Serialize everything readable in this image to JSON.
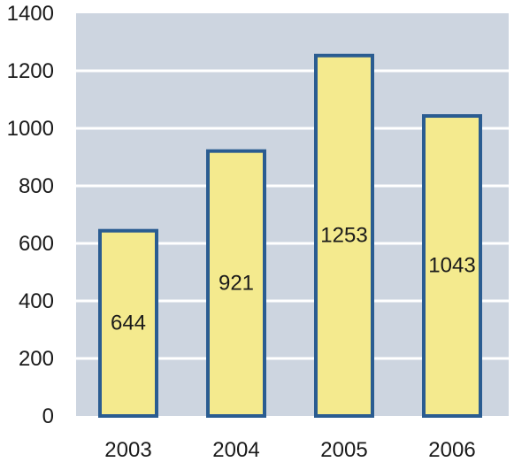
{
  "chart_data": {
    "type": "bar",
    "categories": [
      "2003",
      "2004",
      "2005",
      "2006"
    ],
    "values": [
      644,
      921,
      1253,
      1043
    ],
    "data_labels": [
      "644",
      "921",
      "1253",
      "1043"
    ],
    "ylim": [
      0,
      1400
    ],
    "yticks": [
      0,
      200,
      400,
      600,
      800,
      1000,
      1200,
      1400
    ],
    "ytick_labels": [
      "0",
      "200",
      "400",
      "600",
      "800",
      "1000",
      "1200",
      "1400"
    ],
    "grid": true,
    "legend": "none",
    "title": "",
    "xlabel": "",
    "ylabel": ""
  },
  "colors": {
    "plot_background": "#cdd5e0",
    "grid": "#ffffff",
    "bar_fill": "#f4ea8e",
    "bar_stroke": "#2a5c91",
    "text": "#1a1a1a"
  }
}
